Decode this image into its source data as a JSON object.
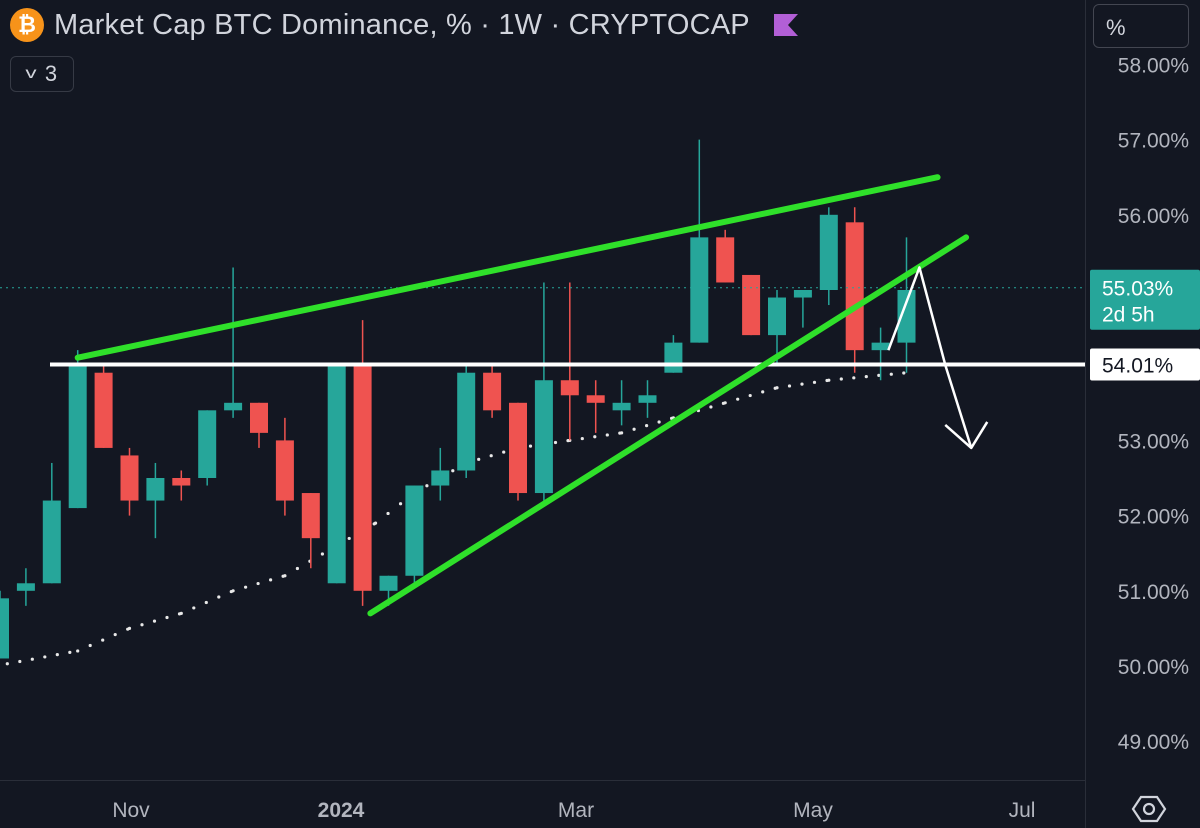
{
  "header": {
    "title": "Market Cap BTC Dominance, % · 1W · CRYPTOCAP",
    "coin_icon": "bitcoin-icon",
    "flag_icon": "flag-icon",
    "collapse_count": "3"
  },
  "scale_button": "%",
  "price_label": {
    "value": "55.03%",
    "countdown": "2d 5h",
    "color": "#26a69a"
  },
  "level_label": {
    "value": "54.01%"
  },
  "colors": {
    "up": "#26a69a",
    "down": "#ef5350",
    "trend": "#2fe02a",
    "level": "#ffffff",
    "background": "#131722"
  },
  "chart_data": {
    "type": "candlestick",
    "timeframe": "1W",
    "ylim": [
      48.5,
      58.3
    ],
    "y_ticks": [
      "49.00%",
      "50.00%",
      "51.00%",
      "52.00%",
      "53.00%",
      "54.00%",
      "55.00%",
      "56.00%",
      "57.00%",
      "58.00%"
    ],
    "x_ticks": [
      "Nov",
      "2024",
      "Mar",
      "May",
      "Jul"
    ],
    "candles": [
      {
        "o": 50.1,
        "h": 51.0,
        "l": 50.1,
        "c": 50.9
      },
      {
        "o": 51.0,
        "h": 51.3,
        "l": 50.8,
        "c": 51.1
      },
      {
        "o": 51.1,
        "h": 52.7,
        "l": 51.1,
        "c": 52.2
      },
      {
        "o": 52.1,
        "h": 54.2,
        "l": 52.1,
        "c": 54.0
      },
      {
        "o": 53.9,
        "h": 54.0,
        "l": 52.9,
        "c": 52.9
      },
      {
        "o": 52.8,
        "h": 52.9,
        "l": 52.0,
        "c": 52.2
      },
      {
        "o": 52.2,
        "h": 52.7,
        "l": 51.7,
        "c": 52.5
      },
      {
        "o": 52.5,
        "h": 52.6,
        "l": 52.2,
        "c": 52.4
      },
      {
        "o": 52.5,
        "h": 53.4,
        "l": 52.4,
        "c": 53.4
      },
      {
        "o": 53.4,
        "h": 55.3,
        "l": 53.3,
        "c": 53.5
      },
      {
        "o": 53.5,
        "h": 53.5,
        "l": 52.9,
        "c": 53.1
      },
      {
        "o": 53.0,
        "h": 53.3,
        "l": 52.0,
        "c": 52.2
      },
      {
        "o": 52.3,
        "h": 52.3,
        "l": 51.3,
        "c": 51.7
      },
      {
        "o": 51.1,
        "h": 54.0,
        "l": 51.1,
        "c": 54.0
      },
      {
        "o": 54.0,
        "h": 54.6,
        "l": 50.8,
        "c": 51.0
      },
      {
        "o": 51.0,
        "h": 51.2,
        "l": 50.8,
        "c": 51.2
      },
      {
        "o": 51.2,
        "h": 52.4,
        "l": 51.1,
        "c": 52.4
      },
      {
        "o": 52.4,
        "h": 52.9,
        "l": 52.2,
        "c": 52.6
      },
      {
        "o": 52.6,
        "h": 54.0,
        "l": 52.5,
        "c": 53.9
      },
      {
        "o": 53.9,
        "h": 54.0,
        "l": 53.3,
        "c": 53.4
      },
      {
        "o": 53.5,
        "h": 53.5,
        "l": 52.2,
        "c": 52.3
      },
      {
        "o": 52.3,
        "h": 55.1,
        "l": 52.2,
        "c": 53.8
      },
      {
        "o": 53.8,
        "h": 55.1,
        "l": 53.0,
        "c": 53.6
      },
      {
        "o": 53.6,
        "h": 53.8,
        "l": 53.1,
        "c": 53.5
      },
      {
        "o": 53.4,
        "h": 53.8,
        "l": 53.2,
        "c": 53.5
      },
      {
        "o": 53.5,
        "h": 53.8,
        "l": 53.3,
        "c": 53.6
      },
      {
        "o": 53.9,
        "h": 54.4,
        "l": 53.9,
        "c": 54.3
      },
      {
        "o": 54.3,
        "h": 57.0,
        "l": 54.3,
        "c": 55.7
      },
      {
        "o": 55.7,
        "h": 55.8,
        "l": 55.1,
        "c": 55.1
      },
      {
        "o": 55.2,
        "h": 55.2,
        "l": 54.4,
        "c": 54.4
      },
      {
        "o": 54.4,
        "h": 55.0,
        "l": 54.0,
        "c": 54.9
      },
      {
        "o": 54.9,
        "h": 55.0,
        "l": 54.5,
        "c": 55.0
      },
      {
        "o": 55.0,
        "h": 56.1,
        "l": 54.8,
        "c": 56.0
      },
      {
        "o": 55.9,
        "h": 56.1,
        "l": 53.9,
        "c": 54.2
      },
      {
        "o": 54.2,
        "h": 54.5,
        "l": 53.8,
        "c": 54.3
      },
      {
        "o": 54.3,
        "h": 55.7,
        "l": 53.9,
        "c": 55.0
      }
    ],
    "dotted_line": [
      {
        "i": -0.2,
        "y": 50.0
      },
      {
        "i": 3,
        "y": 50.2
      },
      {
        "i": 5,
        "y": 50.5
      },
      {
        "i": 7,
        "y": 50.7
      },
      {
        "i": 9,
        "y": 51.0
      },
      {
        "i": 11,
        "y": 51.2
      },
      {
        "i": 13,
        "y": 51.6
      },
      {
        "i": 14.5,
        "y": 51.9
      },
      {
        "i": 16,
        "y": 52.3
      },
      {
        "i": 17,
        "y": 52.5
      },
      {
        "i": 18,
        "y": 52.7
      },
      {
        "i": 20,
        "y": 52.9
      },
      {
        "i": 22,
        "y": 53.0
      },
      {
        "i": 24,
        "y": 53.1
      },
      {
        "i": 26,
        "y": 53.3
      },
      {
        "i": 28,
        "y": 53.5
      },
      {
        "i": 30,
        "y": 53.7
      },
      {
        "i": 32,
        "y": 53.8
      },
      {
        "i": 35,
        "y": 53.9
      }
    ],
    "trend_lines": [
      {
        "name": "upper",
        "from": {
          "i": 3,
          "y": 54.1
        },
        "to": {
          "i": 36.2,
          "y": 56.5
        }
      },
      {
        "name": "lower",
        "from": {
          "i": 14.3,
          "y": 50.7
        },
        "to": {
          "i": 37.3,
          "y": 55.7
        }
      }
    ],
    "horizontal_level": 54.01,
    "last_price": 55.03,
    "projection_arrow": [
      {
        "i": 34.3,
        "y": 54.2
      },
      {
        "i": 35.5,
        "y": 55.3
      },
      {
        "i": 36.5,
        "y": 54.0
      },
      {
        "i": 37.5,
        "y": 52.9
      }
    ]
  }
}
